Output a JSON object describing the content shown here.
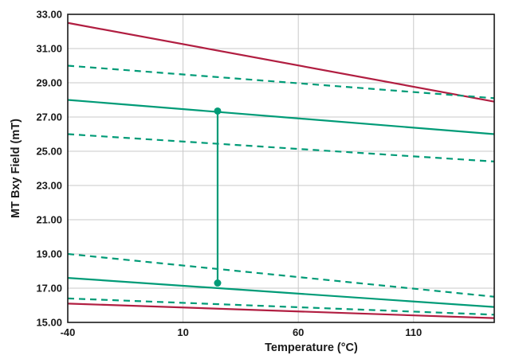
{
  "chart_data": {
    "type": "line",
    "title": "",
    "xlabel": "Temperature (°C)",
    "ylabel": "MT Bxy Field (mT)",
    "xlim": [
      -40,
      145
    ],
    "ylim": [
      15,
      33
    ],
    "xticks": [
      -40,
      10,
      60,
      110
    ],
    "xtick_labels": [
      "-40",
      "10",
      "60",
      "110"
    ],
    "yticks": [
      15,
      17,
      19,
      21,
      23,
      25,
      27,
      29,
      31,
      33
    ],
    "ytick_labels": [
      "15.00",
      "17.00",
      "19.00",
      "21.00",
      "23.00",
      "25.00",
      "27.00",
      "29.00",
      "31.00",
      "33.00"
    ],
    "grid": true,
    "colors": {
      "green": "#009B77",
      "red": "#B11E41",
      "grid": "#c9c9c9",
      "frame": "#1a1a1a"
    },
    "series": [
      {
        "name": "red-upper-solid",
        "color": "#B11E41",
        "dash": false,
        "x": [
          -40,
          145
        ],
        "y": [
          32.5,
          27.9
        ]
      },
      {
        "name": "green-upper-max-dashed",
        "color": "#009B77",
        "dash": true,
        "x": [
          -40,
          145
        ],
        "y": [
          30.0,
          28.1
        ]
      },
      {
        "name": "green-upper-typ-solid",
        "color": "#009B77",
        "dash": false,
        "x": [
          -40,
          145
        ],
        "y": [
          28.0,
          26.0
        ]
      },
      {
        "name": "green-upper-min-dashed",
        "color": "#009B77",
        "dash": true,
        "x": [
          -40,
          145
        ],
        "y": [
          26.0,
          24.4
        ]
      },
      {
        "name": "green-lower-max-dashed",
        "color": "#009B77",
        "dash": true,
        "x": [
          -40,
          145
        ],
        "y": [
          19.0,
          16.5
        ]
      },
      {
        "name": "green-lower-typ-solid",
        "color": "#009B77",
        "dash": false,
        "x": [
          -40,
          145
        ],
        "y": [
          17.6,
          15.9
        ]
      },
      {
        "name": "green-lower-min-dashed",
        "color": "#009B77",
        "dash": true,
        "x": [
          -40,
          145
        ],
        "y": [
          16.4,
          15.45
        ]
      },
      {
        "name": "red-lower-solid",
        "color": "#B11E41",
        "dash": false,
        "x": [
          -40,
          145
        ],
        "y": [
          16.1,
          15.25
        ]
      }
    ],
    "marker": {
      "x": 25,
      "y_top": 27.35,
      "y_bottom": 17.3,
      "color": "#009B77"
    }
  }
}
